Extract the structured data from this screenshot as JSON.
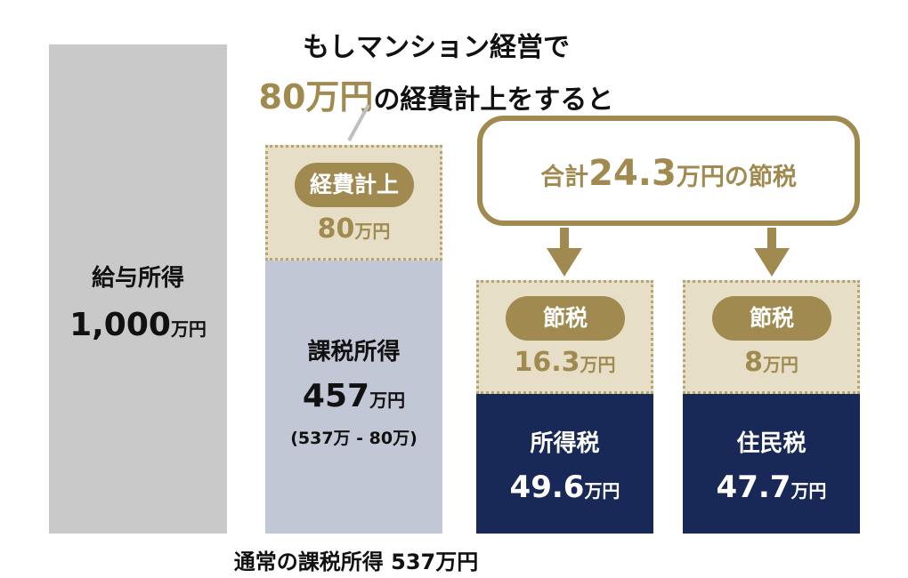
{
  "salary": {
    "label": "給与所得",
    "amount": "1,000",
    "unit": "万円"
  },
  "headline": {
    "line1": "もしマンション経営で",
    "line2_highlight": "80万円",
    "line2_rest": "の経費計上をすると"
  },
  "expense": {
    "pill": "経費計上",
    "amount": "80",
    "unit": "万円"
  },
  "taxable": {
    "label": "課税所得",
    "amount": "457",
    "unit": "万円",
    "formula": "(537万 - 80万)"
  },
  "callout": {
    "prefix": "合計",
    "amount": "24.3",
    "suffix": "万円の節税"
  },
  "income_tax": {
    "savings_pill": "節税",
    "savings_amount": "16.3",
    "savings_unit": "万円",
    "label": "所得税",
    "amount": "49.6",
    "unit": "万円"
  },
  "resident_tax": {
    "savings_pill": "節税",
    "savings_amount": "8",
    "savings_unit": "万円",
    "label": "住民税",
    "amount": "47.7",
    "unit": "万円"
  },
  "footer": "通常の課税所得 537万円",
  "colors": {
    "gold": "#a08a4f",
    "navy": "#182958",
    "beige": "#e6dec7",
    "gray": "#c9c9c9",
    "lavender": "#c2c7d6"
  }
}
